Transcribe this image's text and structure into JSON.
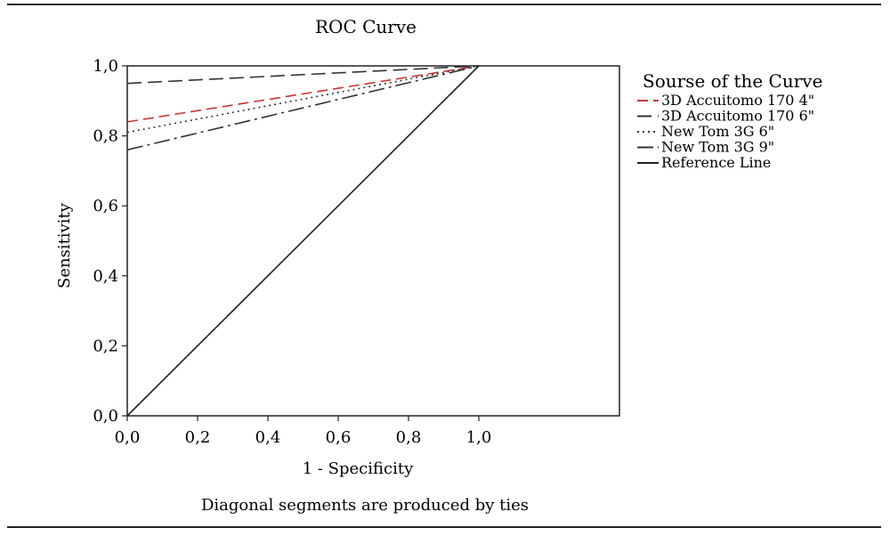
{
  "chart_data": {
    "type": "line",
    "title": "ROC Curve",
    "xlabel": "1 - Specificity",
    "ylabel": "Sensitivity",
    "footnote": "Diagonal segments are produced by ties",
    "xlim": [
      0,
      1.4
    ],
    "ylim": [
      0,
      1
    ],
    "x_ticks": [
      "0,0",
      "0,2",
      "0,4",
      "0,6",
      "0,8",
      "1,0"
    ],
    "y_ticks": [
      "0,0",
      "0,2",
      "0,4",
      "0,6",
      "0,8",
      "1,0"
    ],
    "legend_title": "Sourse of the Curve",
    "legend_position": "right",
    "grid": false,
    "series": [
      {
        "name": "3D Accuitomo 170 4\"",
        "x": [
          0,
          1
        ],
        "y": [
          0.84,
          1
        ],
        "color": "#cc3333",
        "dash": "dash"
      },
      {
        "name": "3D Accuitomo 170 6\"",
        "x": [
          0,
          1
        ],
        "y": [
          0.95,
          1
        ],
        "color": "#333333",
        "dash": "longdash"
      },
      {
        "name": "New Tom 3G 6\"",
        "x": [
          0,
          1
        ],
        "y": [
          0.81,
          1
        ],
        "color": "#333333",
        "dash": "dot"
      },
      {
        "name": "New Tom 3G 9\"",
        "x": [
          0,
          1
        ],
        "y": [
          0.76,
          1
        ],
        "color": "#333333",
        "dash": "dashdot"
      },
      {
        "name": "Reference Line",
        "x": [
          0,
          1
        ],
        "y": [
          0,
          1
        ],
        "color": "#222222",
        "dash": "solid"
      }
    ]
  }
}
